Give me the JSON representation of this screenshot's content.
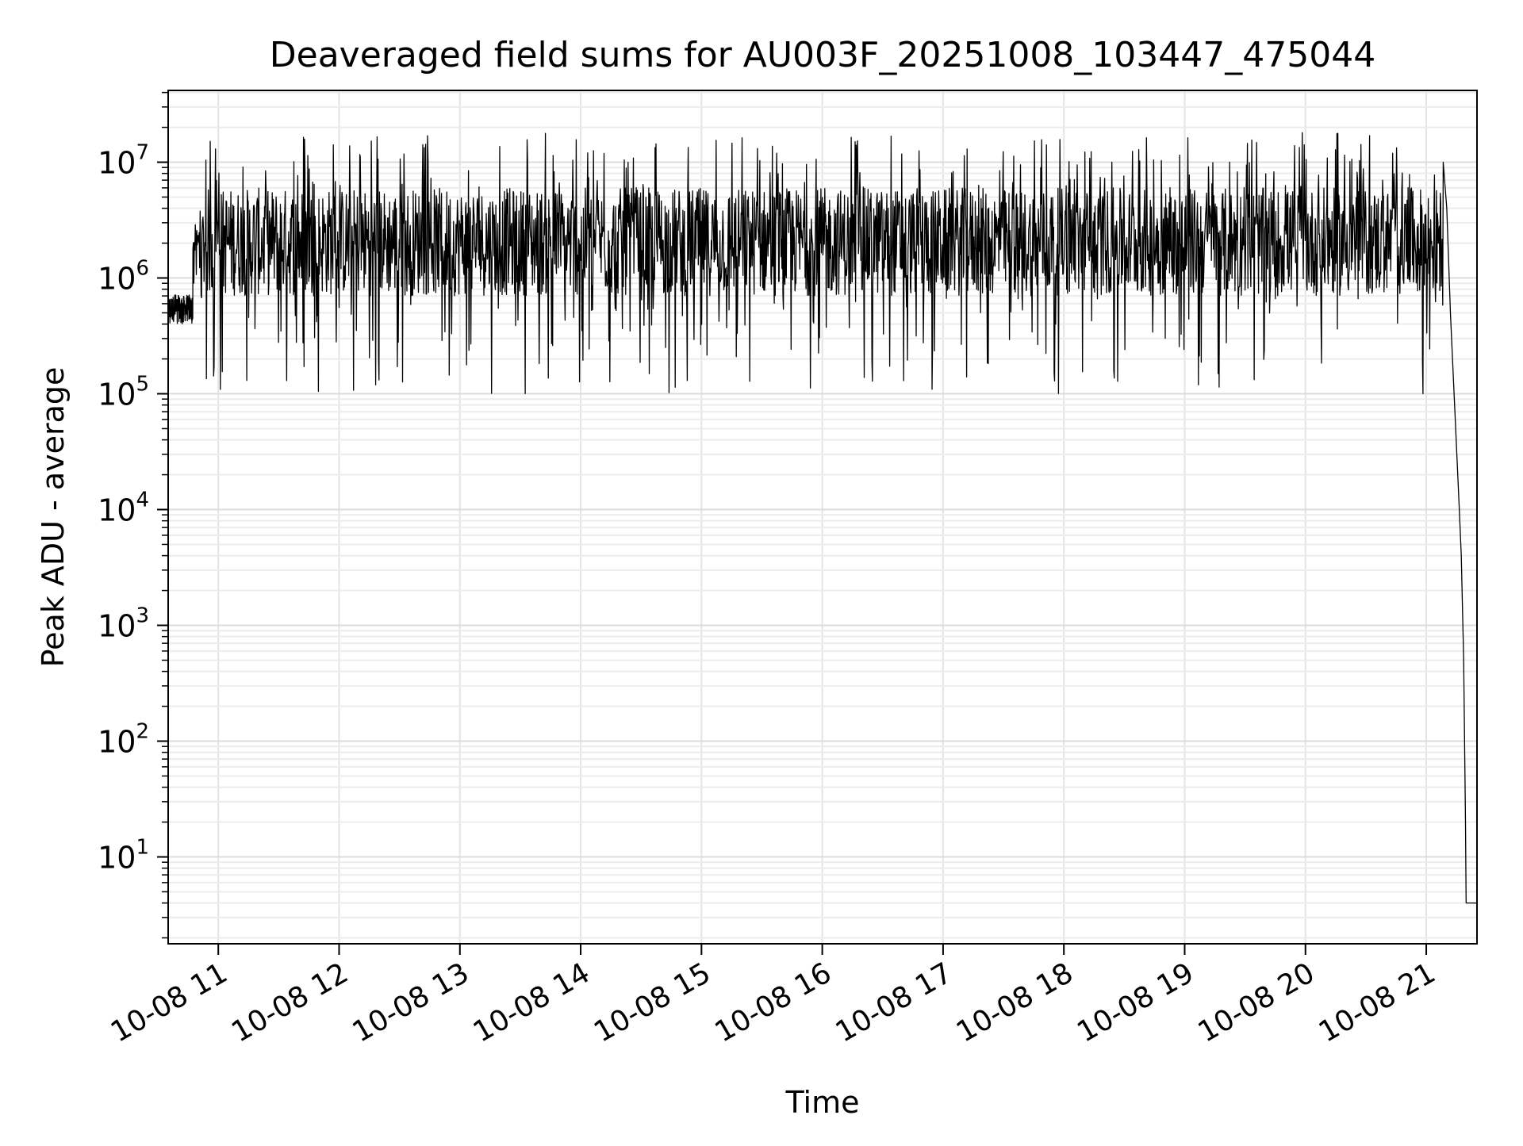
{
  "chart_data": {
    "type": "line",
    "title": "Deaveraged field sums for AU003F_20251008_103447_475044",
    "xlabel": "Time",
    "ylabel": "Peak ADU - average",
    "yscale": "log",
    "ylim_exponent": [
      0.25,
      7.62
    ],
    "xlim_hours": [
      10.585,
      21.42
    ],
    "grid": true,
    "x_ticks": [
      {
        "hour": 11,
        "label": "10-08 11"
      },
      {
        "hour": 12,
        "label": "10-08 12"
      },
      {
        "hour": 13,
        "label": "10-08 13"
      },
      {
        "hour": 14,
        "label": "10-08 14"
      },
      {
        "hour": 15,
        "label": "10-08 15"
      },
      {
        "hour": 16,
        "label": "10-08 16"
      },
      {
        "hour": 17,
        "label": "10-08 17"
      },
      {
        "hour": 18,
        "label": "10-08 18"
      },
      {
        "hour": 19,
        "label": "10-08 19"
      },
      {
        "hour": 20,
        "label": "10-08 20"
      },
      {
        "hour": 21,
        "label": "10-08 21"
      }
    ],
    "y_ticks": [
      {
        "exp": 1,
        "base": "10",
        "sup": "1"
      },
      {
        "exp": 2,
        "base": "10",
        "sup": "2"
      },
      {
        "exp": 3,
        "base": "10",
        "sup": "3"
      },
      {
        "exp": 4,
        "base": "10",
        "sup": "4"
      },
      {
        "exp": 5,
        "base": "10",
        "sup": "5"
      },
      {
        "exp": 6,
        "base": "10",
        "sup": "6"
      },
      {
        "exp": 7,
        "base": "10",
        "sup": "7"
      }
    ],
    "series": [
      {
        "name": "field sums",
        "color": "#000000",
        "segments": [
          {
            "t0": 10.585,
            "t1": 10.79,
            "median": 580000,
            "band_low": 420000,
            "band_high": 700000,
            "spike_high": 720000,
            "spike_low": 400000
          },
          {
            "t0": 10.79,
            "t1": 21.14,
            "median": 2000000,
            "band_low": 700000,
            "band_high": 6000000,
            "spike_high": 18000000,
            "spike_low": 100000
          },
          {
            "t0": 21.14,
            "t1": 21.33,
            "median": 3000,
            "band_low": 20,
            "band_high": 1500000,
            "spike_high": 1500000,
            "spike_low": 20
          },
          {
            "t0": 21.33,
            "t1": 21.42,
            "median": 4,
            "band_low": 3.9,
            "band_high": 5,
            "spike_high": 5,
            "spike_low": 3.9
          }
        ],
        "tail_points": [
          {
            "t": 21.14,
            "v": 10000000
          },
          {
            "t": 21.17,
            "v": 4000000
          },
          {
            "t": 21.2,
            "v": 500000
          },
          {
            "t": 21.24,
            "v": 60000
          },
          {
            "t": 21.27,
            "v": 12000
          },
          {
            "t": 21.29,
            "v": 4000
          },
          {
            "t": 21.31,
            "v": 500
          },
          {
            "t": 21.325,
            "v": 20
          },
          {
            "t": 21.33,
            "v": 4
          },
          {
            "t": 21.42,
            "v": 4
          }
        ]
      }
    ]
  }
}
